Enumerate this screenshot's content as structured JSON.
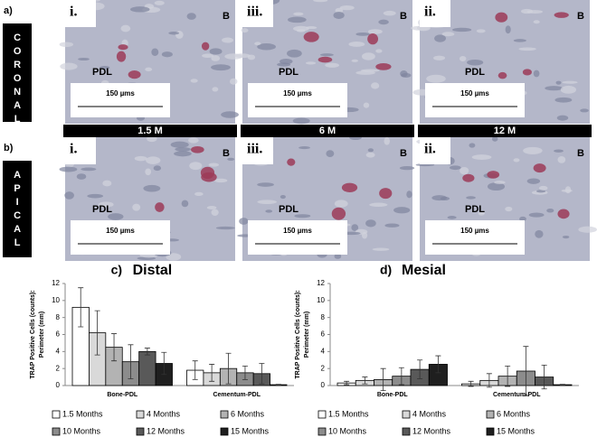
{
  "micrographs": {
    "rows": [
      {
        "label": "a)",
        "side_text": "CORONAL",
        "panels": [
          {
            "numeral": "i.",
            "bone": "B",
            "pdl": "PDL",
            "scale": "150 µms"
          },
          {
            "numeral": "iii.",
            "bone": "B",
            "pdl": "PDL",
            "scale": "150 µms"
          },
          {
            "numeral": "ii.",
            "bone": "B",
            "pdl": "PDL",
            "scale": "150 µms"
          }
        ]
      },
      {
        "label": "b)",
        "side_text": "APICAL",
        "panels": [
          {
            "numeral": "i.",
            "bone": "B",
            "pdl": "PDL",
            "scale": "150 µms"
          },
          {
            "numeral": "iii.",
            "bone": "B",
            "pdl": "PDL",
            "scale": "150 µms"
          },
          {
            "numeral": "ii.",
            "bone": "B",
            "pdl": "PDL",
            "scale": "150 µms"
          }
        ]
      }
    ],
    "ages": [
      "1.5 M",
      "6 M",
      "12 M"
    ]
  },
  "chart_data": [
    {
      "type": "bar",
      "label": "c)",
      "title": "Distal",
      "ylabel": [
        "TRAP Positive Cells (counts):",
        "Perimeter (mm)"
      ],
      "categories": [
        "Bone-PDL",
        "Cementum-PDL"
      ],
      "ylim": [
        0,
        12
      ],
      "yticks": [
        0,
        2,
        4,
        6,
        8,
        10,
        12
      ],
      "series": [
        {
          "name": "1.5 Months",
          "color": "#ffffff",
          "values": [
            9.2,
            1.8
          ],
          "errors": [
            2.3,
            1.1
          ]
        },
        {
          "name": "4 Months",
          "color": "#d9d9d9",
          "values": [
            6.2,
            1.5
          ],
          "errors": [
            2.6,
            1.0
          ]
        },
        {
          "name": "6 Months",
          "color": "#b3b3b3",
          "values": [
            4.5,
            2.0
          ],
          "errors": [
            1.6,
            1.8
          ]
        },
        {
          "name": "10 Months",
          "color": "#8c8c8c",
          "values": [
            2.8,
            1.5
          ],
          "errors": [
            2.0,
            0.8
          ]
        },
        {
          "name": "12 Months",
          "color": "#595959",
          "values": [
            4.0,
            1.4
          ],
          "errors": [
            0.4,
            1.2
          ]
        },
        {
          "name": "15 Months",
          "color": "#1f1f1f",
          "values": [
            2.6,
            0.1
          ],
          "errors": [
            1.3,
            0.05
          ]
        }
      ]
    },
    {
      "type": "bar",
      "label": "d)",
      "title": "Mesial",
      "ylabel": [
        "TRAP Positive Cells (counts):",
        "Perimeter (mm)"
      ],
      "categories": [
        "Bone-PDL",
        "Cementum-PDL"
      ],
      "ylim": [
        0,
        12
      ],
      "yticks": [
        0,
        2,
        4,
        6,
        8,
        10,
        12
      ],
      "series": [
        {
          "name": "1.5 Months",
          "color": "#ffffff",
          "values": [
            0.3,
            0.2
          ],
          "errors": [
            0.2,
            0.3
          ]
        },
        {
          "name": "4 Months",
          "color": "#d9d9d9",
          "values": [
            0.6,
            0.6
          ],
          "errors": [
            0.4,
            0.8
          ]
        },
        {
          "name": "6 Months",
          "color": "#b3b3b3",
          "values": [
            0.7,
            1.1
          ],
          "errors": [
            1.3,
            1.2
          ]
        },
        {
          "name": "10 Months",
          "color": "#8c8c8c",
          "values": [
            1.1,
            1.7
          ],
          "errors": [
            1.0,
            2.9
          ]
        },
        {
          "name": "12 Months",
          "color": "#595959",
          "values": [
            1.9,
            1.0
          ],
          "errors": [
            1.1,
            1.4
          ]
        },
        {
          "name": "15 Months",
          "color": "#1f1f1f",
          "values": [
            2.5,
            0.1
          ],
          "errors": [
            1.0,
            0.05
          ]
        }
      ]
    }
  ]
}
